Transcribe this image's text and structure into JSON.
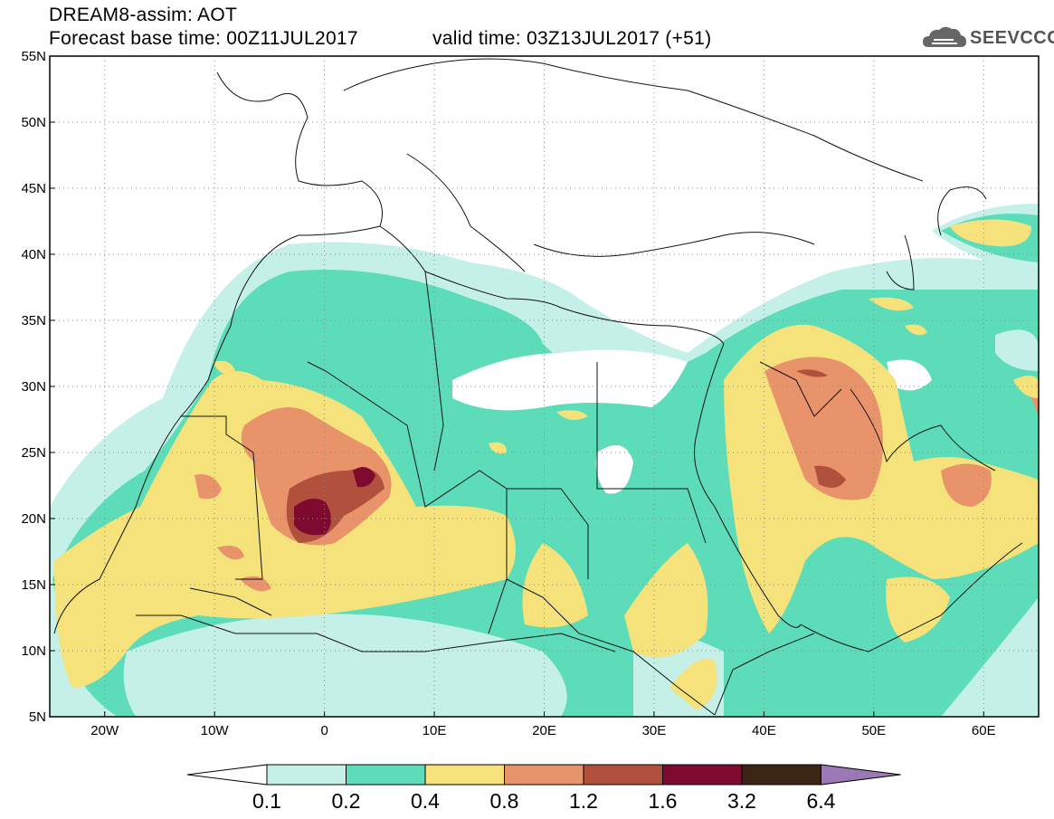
{
  "header": {
    "title_line1": "DREAM8-assim: AOT",
    "title_line2": "Forecast base time: 00Z11JUL2017",
    "valid_time": "valid time: 03Z13JUL2017 (+51)",
    "logo_text": "SEEVCCC"
  },
  "map": {
    "lon_range": [
      -25,
      65
    ],
    "lat_range": [
      5,
      55
    ],
    "lat_ticks": [
      "5N",
      "10N",
      "15N",
      "20N",
      "25N",
      "30N",
      "35N",
      "40N",
      "45N",
      "50N",
      "55N"
    ],
    "lon_ticks": [
      "20W",
      "10W",
      "0",
      "10E",
      "20E",
      "30E",
      "40E",
      "50E",
      "60E"
    ],
    "gridlines": "dotted"
  },
  "colorbar": {
    "labels": [
      "0.1",
      "0.2",
      "0.4",
      "0.8",
      "1.2",
      "1.6",
      "3.2",
      "6.4"
    ],
    "colors": [
      "#ffffff",
      "#c4f0e8",
      "#5cdcb8",
      "#f6e27a",
      "#e8936a",
      "#b2503e",
      "#7f0a30",
      "#3b2514",
      "#9b79b6"
    ]
  },
  "legend_colors": {
    "c1": "#c4f0e8",
    "c2": "#5cdcb8",
    "c3": "#f6e27a",
    "c4": "#e8936a",
    "c5": "#b2503e",
    "c6": "#7f0a30"
  }
}
